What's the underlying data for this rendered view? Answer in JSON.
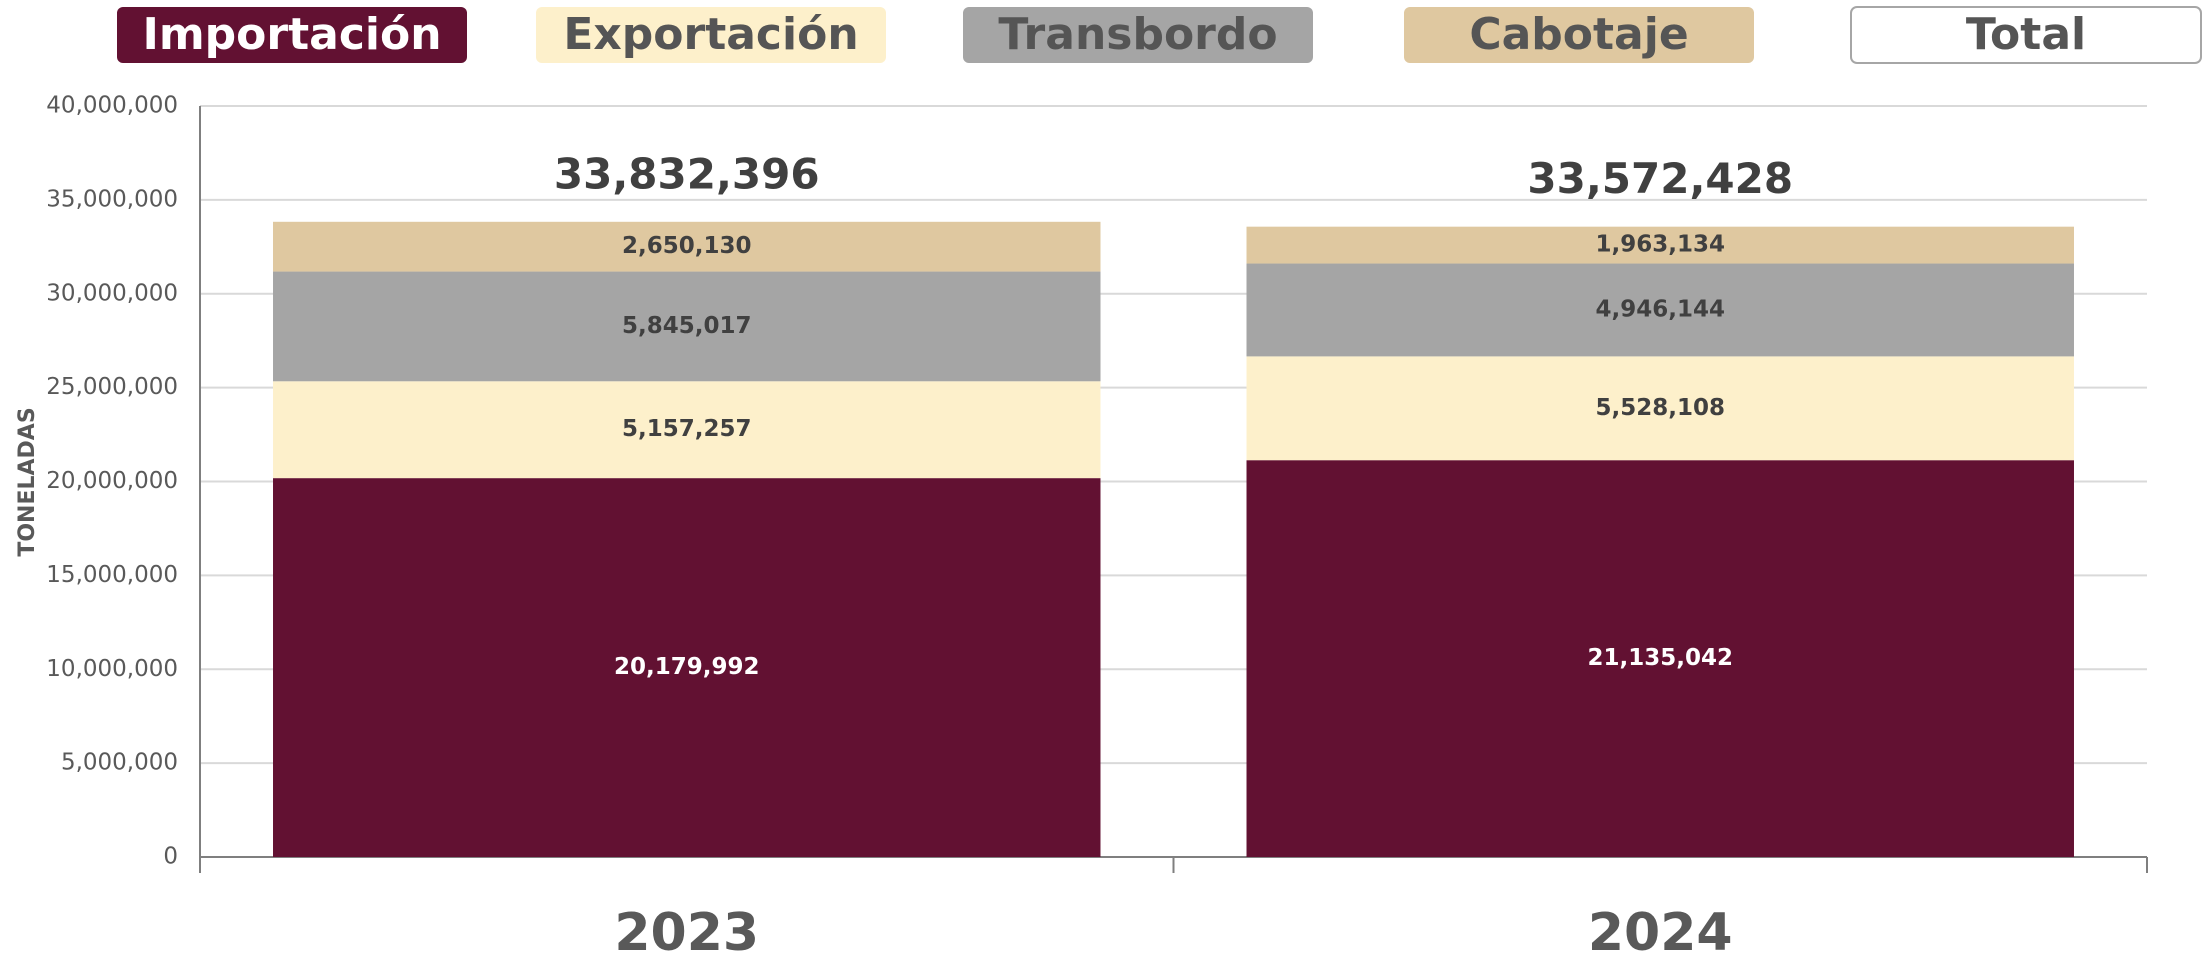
{
  "chart_data": {
    "type": "stacked_bar",
    "y_label": "TONELADAS",
    "categories": [
      "2023",
      "2024"
    ],
    "series": [
      {
        "name": "Importación",
        "color": "#621132",
        "values": [
          20179992,
          21135042
        ],
        "value_labels": [
          "20,179,992",
          "21,135,042"
        ]
      },
      {
        "name": "Exportación",
        "color": "#fdf0cb",
        "values": [
          5157257,
          5528108
        ],
        "value_labels": [
          "5,157,257",
          "5,528,108"
        ]
      },
      {
        "name": "Transbordo",
        "color": "#a5a5a5",
        "values": [
          5845017,
          4946144
        ],
        "value_labels": [
          "5,845,017",
          "4,946,144"
        ]
      },
      {
        "name": "Cabotaje",
        "color": "#dfc8a0",
        "values": [
          2650130,
          1963134
        ],
        "value_labels": [
          "2,650,130",
          "1,963,134"
        ]
      }
    ],
    "totals": {
      "name": "Total",
      "values": [
        33832396,
        33572428
      ],
      "value_labels": [
        "33,832,396",
        "33,572,428"
      ]
    },
    "ylim": [
      0,
      40000000
    ],
    "yticks": [
      0,
      {
        "value": 5000000,
        "label": "5,000,000"
      },
      {
        "value": 10000000,
        "label": "10,000,000"
      },
      {
        "value": 15000000,
        "label": "15,000,000"
      },
      {
        "value": 20000000,
        "label": "20,000,000"
      },
      {
        "value": 25000000,
        "label": "25,000,000"
      },
      {
        "value": 30000000,
        "label": "30,000,000"
      },
      {
        "value": 35000000,
        "label": "35,000,000"
      },
      {
        "value": 40000000,
        "label": "40,000,000"
      }
    ],
    "grid": true
  }
}
